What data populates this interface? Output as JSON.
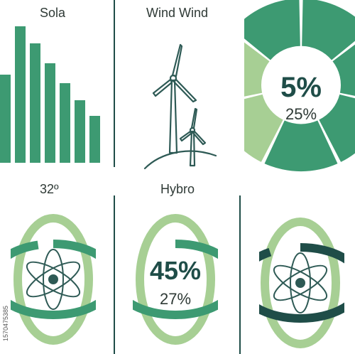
{
  "colors": {
    "green": "#3d9a72",
    "green_mid": "#49a57d",
    "green_light": "#a7cf94",
    "green_dark": "#1f4d48",
    "outline": "#2e5a55"
  },
  "panels": {
    "solar": {
      "label": "Sola",
      "bars": [
        0.62,
        0.96,
        0.84,
        0.7,
        0.56,
        0.44,
        0.33
      ]
    },
    "wind": {
      "label": "Wind Wind",
      "icon": "wind-turbine-icon"
    },
    "donut_top": {
      "big": "5%",
      "small": "25%",
      "segments": [
        "green",
        "green",
        "green",
        "green",
        "green_light",
        "green_light",
        "green"
      ]
    },
    "ring_left": {
      "label": "32º",
      "icon": "atom-icon",
      "fill": 0.95
    },
    "ring_mid": {
      "label": "Hybro",
      "big": "45%",
      "small": "27%",
      "fill": 0.78
    },
    "ring_right": {
      "icon": "atom-icon",
      "fill": 0.9
    }
  },
  "watermark": {
    "stock_id": "1570475385"
  }
}
